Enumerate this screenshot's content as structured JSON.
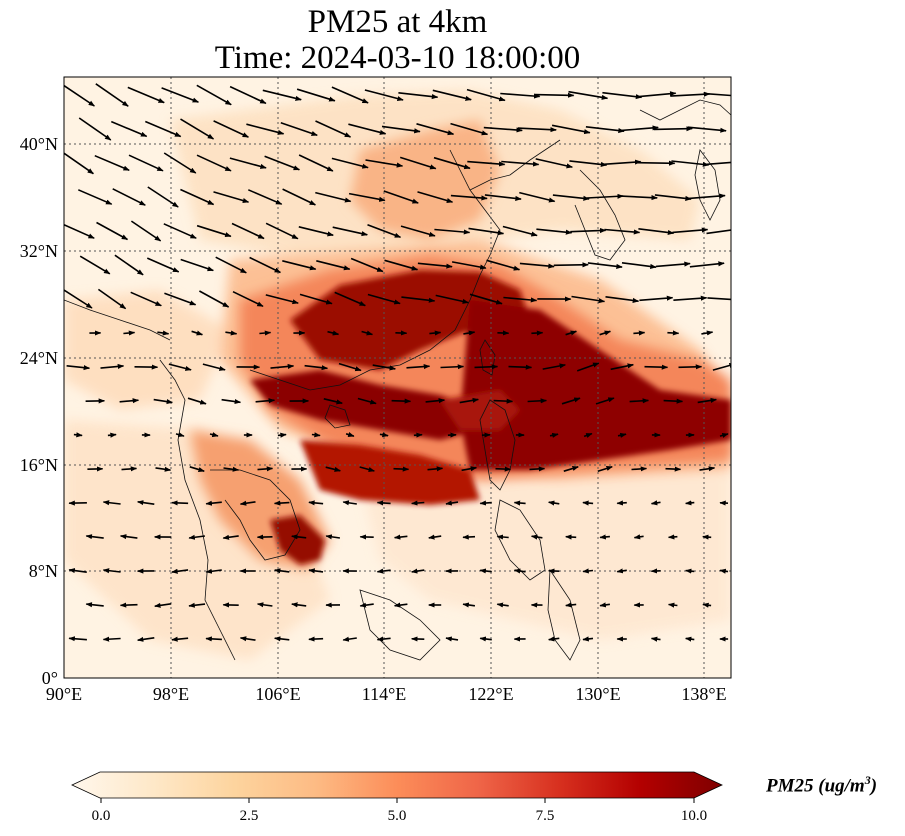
{
  "title_line1": "PM25 at 4km",
  "title_line2": "Time: 2024-03-10 18:00:00",
  "lon_ticks": [
    "90°E",
    "98°E",
    "106°E",
    "114°E",
    "122°E",
    "130°E",
    "138°E"
  ],
  "lat_ticks": [
    "0°",
    "8°N",
    "16°N",
    "24°N",
    "32°N",
    "40°N"
  ],
  "lon_values": [
    90,
    98,
    106,
    114,
    122,
    130,
    138
  ],
  "lat_values": [
    0,
    8,
    16,
    24,
    32,
    40
  ],
  "extent": {
    "lon_min": 90,
    "lon_max": 140,
    "lat_min": 0,
    "lat_max": 45
  },
  "colorbar": {
    "ticks": [
      "0.0",
      "2.5",
      "5.0",
      "7.5",
      "10.0"
    ],
    "values": [
      0,
      2.5,
      5,
      7.5,
      10
    ],
    "min": 0,
    "max": 10,
    "label_main": "PM25 (ug/m",
    "label_sup": "3",
    "label_end": ")",
    "colormap": "OrRd",
    "extend": "both"
  },
  "colors": {
    "low": "#fff7ec",
    "mid": "#fc8d59",
    "high": "#7f0000"
  },
  "layers": [
    "PM25 concentration",
    "wind vectors",
    "coastlines",
    "gridlines"
  ]
}
